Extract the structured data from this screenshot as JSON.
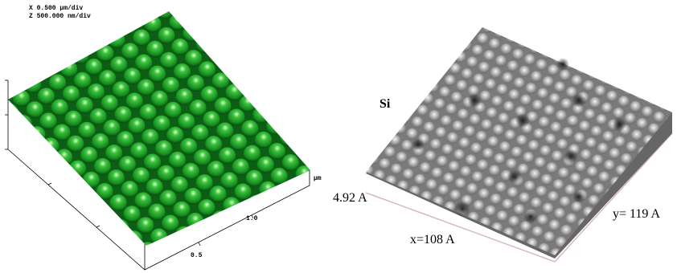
{
  "left_panel": {
    "scale_x": "X  0.500 µm/div",
    "scale_z": "Z  500.000 nm/div",
    "axis_unit": "µm",
    "tick_labels": [
      "1.0",
      "0.5"
    ]
  },
  "right_panel": {
    "material": "Si",
    "height": "4.92 A",
    "x_size": "x=108 A",
    "y_size": "y= 119 A"
  }
}
